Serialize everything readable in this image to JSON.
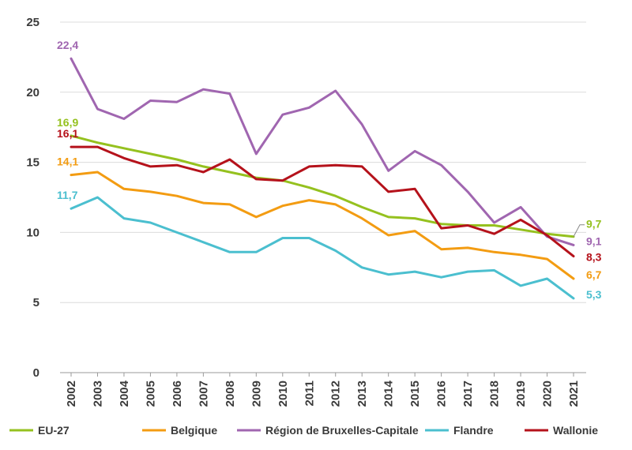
{
  "chart_data": {
    "type": "line",
    "x": [
      "2002",
      "2003",
      "2004",
      "2005",
      "2006",
      "2007",
      "2008",
      "2009",
      "2010",
      "2011",
      "2012",
      "2013",
      "2014",
      "2015",
      "2016",
      "2017",
      "2018",
      "2019",
      "2020",
      "2021"
    ],
    "ylim": [
      0,
      25
    ],
    "yticks": [
      "0",
      "5",
      "10",
      "15",
      "20",
      "25"
    ],
    "grid": "horizontal",
    "legend_position": "bottom",
    "series": [
      {
        "name": "EU-27",
        "color": "#95c11f",
        "values": [
          16.9,
          16.4,
          16.0,
          15.6,
          15.2,
          14.7,
          14.3,
          13.9,
          13.7,
          13.2,
          12.6,
          11.8,
          11.1,
          11.0,
          10.6,
          10.5,
          10.5,
          10.2,
          9.9,
          9.7
        ],
        "start_label": "16,9",
        "end_label": "9,7"
      },
      {
        "name": "Belgique",
        "color": "#f39c12",
        "values": [
          14.1,
          14.3,
          13.1,
          12.9,
          12.6,
          12.1,
          12.0,
          11.1,
          11.9,
          12.3,
          12.0,
          11.0,
          9.8,
          10.1,
          8.8,
          8.9,
          8.6,
          8.4,
          8.1,
          6.7
        ],
        "start_label": "14,1",
        "end_label": "6,7"
      },
      {
        "name": "Région de Bruxelles-Capitale",
        "color": "#a066b0",
        "values": [
          22.4,
          18.8,
          18.1,
          19.4,
          19.3,
          20.2,
          19.9,
          15.6,
          18.4,
          18.9,
          20.1,
          17.7,
          14.4,
          15.8,
          14.8,
          12.9,
          10.7,
          11.8,
          9.7,
          9.1
        ],
        "start_label": "22,4",
        "end_label": "9,1"
      },
      {
        "name": "Flandre",
        "color": "#4bbfcf",
        "values": [
          11.7,
          12.5,
          11.0,
          10.7,
          10.0,
          9.3,
          8.6,
          8.6,
          9.6,
          9.6,
          8.7,
          7.5,
          7.0,
          7.2,
          6.8,
          7.2,
          7.3,
          6.2,
          6.7,
          5.3
        ],
        "start_label": "11,7",
        "end_label": "5,3"
      },
      {
        "name": "Wallonie",
        "color": "#b5121b",
        "values": [
          16.1,
          16.1,
          15.3,
          14.7,
          14.8,
          14.3,
          15.2,
          13.8,
          13.7,
          14.7,
          14.8,
          14.7,
          12.9,
          13.1,
          10.3,
          10.5,
          9.9,
          10.9,
          9.8,
          8.3
        ],
        "start_label": "16,1",
        "end_label": "8,3"
      }
    ]
  }
}
